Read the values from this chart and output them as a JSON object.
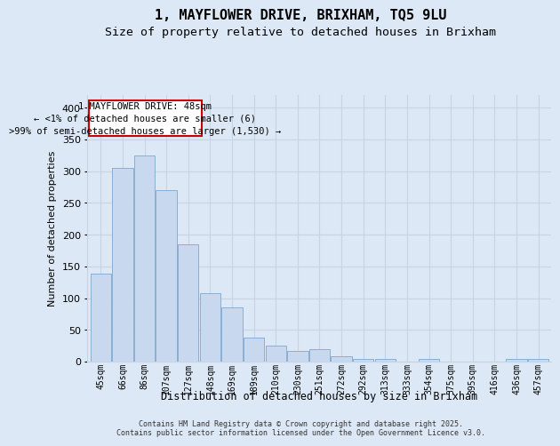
{
  "title": "1, MAYFLOWER DRIVE, BRIXHAM, TQ5 9LU",
  "subtitle": "Size of property relative to detached houses in Brixham",
  "xlabel": "Distribution of detached houses by size in Brixham",
  "ylabel": "Number of detached properties",
  "bin_labels": [
    "45sqm",
    "66sqm",
    "86sqm",
    "107sqm",
    "127sqm",
    "148sqm",
    "169sqm",
    "189sqm",
    "210sqm",
    "230sqm",
    "251sqm",
    "272sqm",
    "292sqm",
    "313sqm",
    "333sqm",
    "354sqm",
    "375sqm",
    "395sqm",
    "416sqm",
    "436sqm",
    "457sqm"
  ],
  "bar_heights": [
    138,
    305,
    325,
    270,
    185,
    108,
    85,
    38,
    25,
    17,
    20,
    8,
    4,
    4,
    0,
    4,
    0,
    0,
    0,
    4,
    4
  ],
  "bar_color": "#c8d8ee",
  "bar_edge_color": "#7fa8cc",
  "grid_color": "#c8d4e4",
  "annotation_text": "1 MAYFLOWER DRIVE: 48sqm\n← <1% of detached houses are smaller (6)\n>99% of semi-detached houses are larger (1,530) →",
  "annotation_box_color": "#ffffff",
  "annotation_box_edge_color": "#cc0000",
  "ylim": [
    0,
    420
  ],
  "yticks": [
    0,
    50,
    100,
    150,
    200,
    250,
    300,
    350,
    400
  ],
  "footer": "Contains HM Land Registry data © Crown copyright and database right 2025.\nContains public sector information licensed under the Open Government Licence v3.0.",
  "bg_color": "#dce8f5",
  "plot_bg_color": "#dce8f5",
  "title_fontsize": 11,
  "subtitle_fontsize": 9.5
}
